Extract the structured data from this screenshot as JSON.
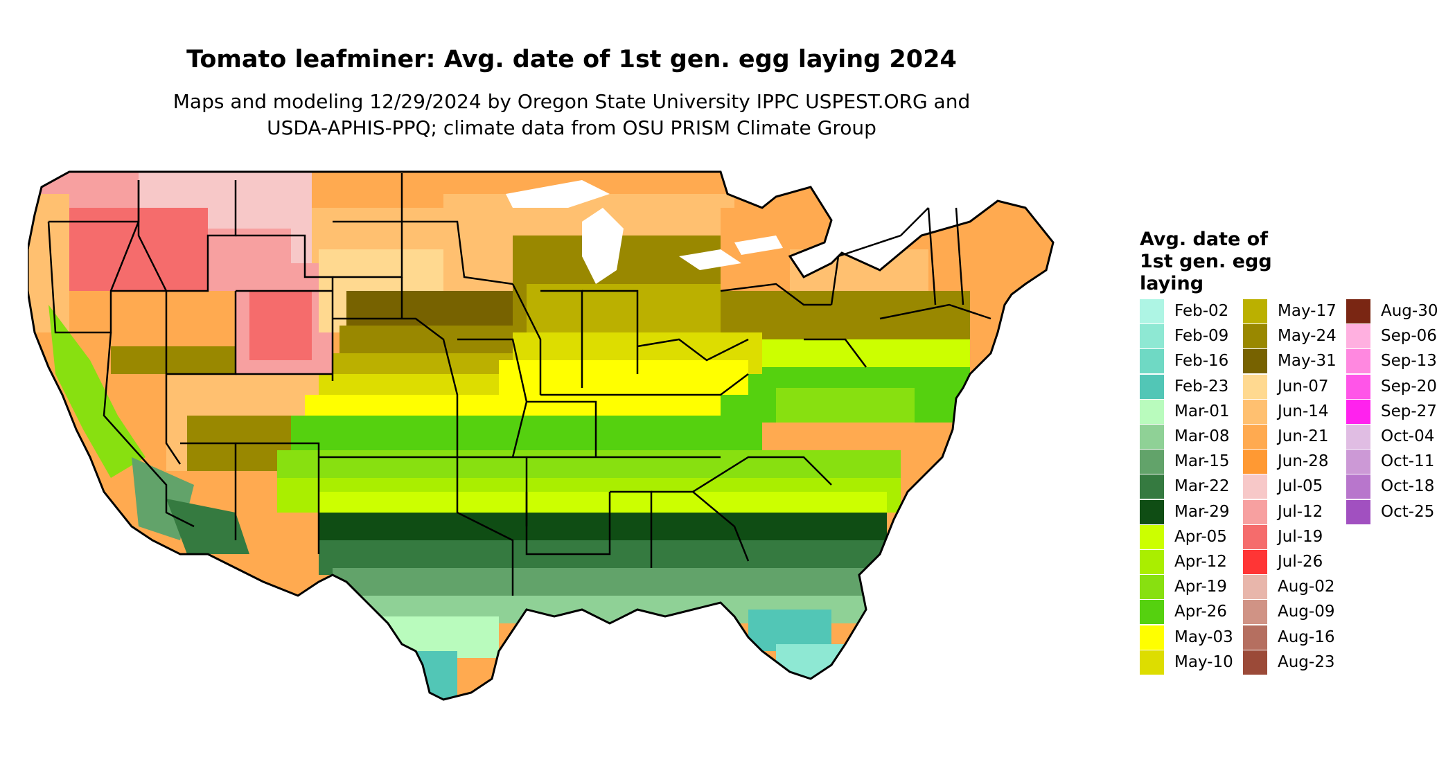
{
  "header": {
    "title": "Tomato leafminer: Avg. date of 1st gen. egg laying 2024",
    "subtitle_line1": "Maps and modeling 12/29/2024 by Oregon State University IPPC USPEST.ORG and",
    "subtitle_line2": "USDA-APHIS-PPQ; climate data from OSU PRISM Climate Group"
  },
  "legend": {
    "title_line1": "Avg. date of",
    "title_line2": "1st gen. egg",
    "title_line3": "laying",
    "items": [
      {
        "label": "Feb-02",
        "color": "#aef5e4"
      },
      {
        "label": "Feb-09",
        "color": "#8ee8d3"
      },
      {
        "label": "Feb-16",
        "color": "#6fd9c4"
      },
      {
        "label": "Feb-23",
        "color": "#52c6b6"
      },
      {
        "label": "Mar-01",
        "color": "#b9fbbd"
      },
      {
        "label": "Mar-08",
        "color": "#8fd196"
      },
      {
        "label": "Mar-15",
        "color": "#62a36a"
      },
      {
        "label": "Mar-22",
        "color": "#357a40"
      },
      {
        "label": "Mar-29",
        "color": "#0f4d14"
      },
      {
        "label": "Apr-05",
        "color": "#ccff00"
      },
      {
        "label": "Apr-12",
        "color": "#aaee00"
      },
      {
        "label": "Apr-19",
        "color": "#88e010"
      },
      {
        "label": "Apr-26",
        "color": "#55d10f"
      },
      {
        "label": "May-03",
        "color": "#ffff00"
      },
      {
        "label": "May-10",
        "color": "#dddd00"
      },
      {
        "label": "May-17",
        "color": "#bbb000"
      },
      {
        "label": "May-24",
        "color": "#998800"
      },
      {
        "label": "May-31",
        "color": "#776200"
      },
      {
        "label": "Jun-07",
        "color": "#ffd990"
      },
      {
        "label": "Jun-14",
        "color": "#ffc070"
      },
      {
        "label": "Jun-21",
        "color": "#ffaa50"
      },
      {
        "label": "Jun-28",
        "color": "#ff9933"
      },
      {
        "label": "Jul-05",
        "color": "#f7c8c8"
      },
      {
        "label": "Jul-12",
        "color": "#f7a0a0"
      },
      {
        "label": "Jul-19",
        "color": "#f56c6c"
      },
      {
        "label": "Jul-26",
        "color": "#ff3535"
      },
      {
        "label": "Aug-02",
        "color": "#e8b6ab"
      },
      {
        "label": "Aug-09",
        "color": "#d09385"
      },
      {
        "label": "Aug-16",
        "color": "#b56f60"
      },
      {
        "label": "Aug-23",
        "color": "#9b4a38"
      },
      {
        "label": "Aug-30",
        "color": "#7a2613"
      },
      {
        "label": "Sep-06",
        "color": "#ffb0e0"
      },
      {
        "label": "Sep-13",
        "color": "#ff88e0"
      },
      {
        "label": "Sep-20",
        "color": "#ff55e8"
      },
      {
        "label": "Sep-27",
        "color": "#ff22ee"
      },
      {
        "label": "Oct-04",
        "color": "#e0bde3"
      },
      {
        "label": "Oct-11",
        "color": "#cc99d6"
      },
      {
        "label": "Oct-18",
        "color": "#b876cc"
      },
      {
        "label": "Oct-25",
        "color": "#a150c0"
      }
    ]
  }
}
